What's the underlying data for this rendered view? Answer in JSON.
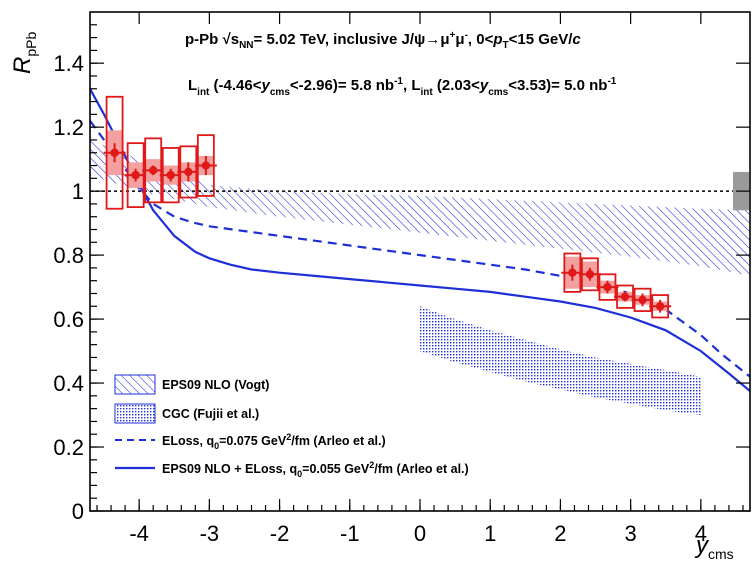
{
  "chart_data": {
    "type": "scatter",
    "header_line1": {
      "pre": "p-Pb  ",
      "sqrt": "√s",
      "sqrt_sub": "NN",
      "post1": "= 5.02 TeV, inclusive J/ψ→μ",
      "sup_plus": "+",
      "mid": "μ",
      "sup_minus": "-",
      "post2": ", 0<",
      "pt": "p",
      "pt_sub": "T",
      "post3": "<15 GeV/",
      "c": "c"
    },
    "header_line2": {
      "l1": "L",
      "l1_sub": "int",
      "r1a": " (-4.46<",
      "y1": "y",
      "y1_sub": "cms",
      "r1b": "<-2.96)= 5.8 nb",
      "r1_sup": "-1",
      "sep": ", L",
      "l2_sub": "int",
      "r2a": " (2.03<",
      "y2": "y",
      "y2_sub": "cms",
      "r2b": "<3.53)= 5.0 nb",
      "r2_sup": "-1"
    },
    "x_label": "y",
    "x_label_sub": "cms",
    "y_label": "R",
    "y_label_sub": "pPb",
    "xlim": [
      -4.7,
      4.7
    ],
    "ylim": [
      0,
      1.56
    ],
    "x_ticks": [
      -4,
      -3,
      -2,
      -1,
      0,
      1,
      2,
      3,
      4
    ],
    "x_tick_labels": [
      "-4",
      "-3",
      "-2",
      "-1",
      "0",
      "1",
      "2",
      "3",
      "4"
    ],
    "y_ticks": [
      0,
      0.2,
      0.4,
      0.6,
      0.8,
      1,
      1.2,
      1.4
    ],
    "y_tick_labels": [
      "0",
      "0.2",
      "0.4",
      "0.6",
      "0.8",
      "1",
      "1.2",
      "1.4"
    ],
    "reference_line": 1.0,
    "global_uncertainty": [
      0.94,
      1.06
    ],
    "data_points": [
      {
        "x": -4.35,
        "y": 1.12,
        "stat": 0.03,
        "syst": 0.175,
        "corr": 0.07
      },
      {
        "x": -4.05,
        "y": 1.05,
        "stat": 0.02,
        "syst": 0.1,
        "corr": 0.04
      },
      {
        "x": -3.8,
        "y": 1.065,
        "stat": 0.015,
        "syst": 0.1,
        "corr": 0.035
      },
      {
        "x": -3.55,
        "y": 1.05,
        "stat": 0.02,
        "syst": 0.085,
        "corr": 0.03
      },
      {
        "x": -3.3,
        "y": 1.06,
        "stat": 0.03,
        "syst": 0.08,
        "corr": 0.03
      },
      {
        "x": -3.05,
        "y": 1.08,
        "stat": 0.03,
        "syst": 0.095,
        "corr": 0.03
      },
      {
        "x": 2.17,
        "y": 0.745,
        "stat": 0.025,
        "syst": 0.06,
        "corr": 0.05
      },
      {
        "x": 2.42,
        "y": 0.74,
        "stat": 0.02,
        "syst": 0.05,
        "corr": 0.04
      },
      {
        "x": 2.67,
        "y": 0.7,
        "stat": 0.02,
        "syst": 0.04,
        "corr": 0.02
      },
      {
        "x": 2.92,
        "y": 0.67,
        "stat": 0.015,
        "syst": 0.035,
        "corr": 0.015
      },
      {
        "x": 3.17,
        "y": 0.66,
        "stat": 0.02,
        "syst": 0.035,
        "corr": 0.015
      },
      {
        "x": 3.42,
        "y": 0.64,
        "stat": 0.02,
        "syst": 0.035,
        "corr": 0.015
      }
    ],
    "models": [
      {
        "name": "EPS09 NLO (Vogt)",
        "type": "band",
        "style": "hatch",
        "x": [
          -4.7,
          -4.0,
          -3.0,
          -2.0,
          -1.0,
          0.0,
          1.0,
          2.0,
          3.0,
          4.0,
          4.7
        ],
        "low": [
          1.05,
          1.0,
          0.95,
          0.92,
          0.895,
          0.87,
          0.845,
          0.82,
          0.795,
          0.765,
          0.735
        ],
        "high": [
          1.16,
          1.1,
          1.02,
          1.0,
          0.99,
          0.985,
          0.975,
          0.965,
          0.955,
          0.945,
          0.94
        ]
      },
      {
        "name": "CGC (Fujii et al.)",
        "type": "band",
        "style": "dots",
        "x": [
          0.0,
          0.5,
          1.0,
          1.5,
          2.0,
          2.5,
          3.0,
          3.5,
          4.0
        ],
        "low": [
          0.5,
          0.465,
          0.435,
          0.405,
          0.38,
          0.355,
          0.335,
          0.315,
          0.3
        ],
        "high": [
          0.64,
          0.6,
          0.565,
          0.535,
          0.505,
          0.48,
          0.46,
          0.44,
          0.42
        ]
      },
      {
        "name_pre": "ELoss, q",
        "name_sub": "0",
        "name_mid": "=0.075 GeV",
        "name_sup": "2",
        "name_post": "/fm (Arleo et al.)",
        "type": "line",
        "style": "dashed",
        "x": [
          -4.7,
          -4.5,
          -4.2,
          -4.0,
          -3.8,
          -3.5,
          -3.2,
          -3.0,
          -2.5,
          -2.0,
          -1.5,
          -1.0,
          -0.5,
          0.0,
          0.5,
          1.0,
          1.5,
          2.0,
          2.5,
          3.0,
          3.5,
          4.0,
          4.3,
          4.7
        ],
        "y": [
          1.22,
          1.16,
          1.07,
          1.01,
          0.96,
          0.92,
          0.9,
          0.89,
          0.875,
          0.86,
          0.845,
          0.83,
          0.815,
          0.8,
          0.785,
          0.77,
          0.755,
          0.735,
          0.71,
          0.68,
          0.63,
          0.55,
          0.49,
          0.42
        ]
      },
      {
        "name_pre": "EPS09 NLO + ELoss, q",
        "name_sub": "0",
        "name_mid": "=0.055 GeV",
        "name_sup": "2",
        "name_post": "/fm (Arleo et al.)",
        "type": "line",
        "style": "solid",
        "x": [
          -4.7,
          -4.5,
          -4.2,
          -4.0,
          -3.8,
          -3.5,
          -3.2,
          -3.0,
          -2.7,
          -2.4,
          -2.0,
          -1.5,
          -1.0,
          -0.5,
          0.0,
          0.5,
          1.0,
          1.5,
          2.0,
          2.5,
          3.0,
          3.5,
          4.0,
          4.4,
          4.7
        ],
        "y": [
          1.32,
          1.24,
          1.11,
          1.02,
          0.94,
          0.86,
          0.81,
          0.79,
          0.77,
          0.755,
          0.745,
          0.735,
          0.725,
          0.715,
          0.705,
          0.695,
          0.685,
          0.67,
          0.655,
          0.635,
          0.605,
          0.565,
          0.5,
          0.43,
          0.375
        ]
      }
    ],
    "legend": [
      {
        "label": "EPS09 NLO (Vogt)"
      },
      {
        "label": "CGC (Fujii et al.)"
      },
      {
        "pre": "ELoss, q",
        "sub": "0",
        "mid": "=0.075 GeV",
        "sup": "2",
        "post": "/fm (Arleo et al.)"
      },
      {
        "pre": "EPS09 NLO + ELoss, q",
        "sub": "0",
        "mid": "=0.055 GeV",
        "sup": "2",
        "post": "/fm (Arleo et al.)"
      }
    ],
    "colors": {
      "model": "#1f2fd8",
      "data": "#e01818",
      "data_fill": "#f2a0a0",
      "global_box": "#9a9a9a"
    }
  }
}
